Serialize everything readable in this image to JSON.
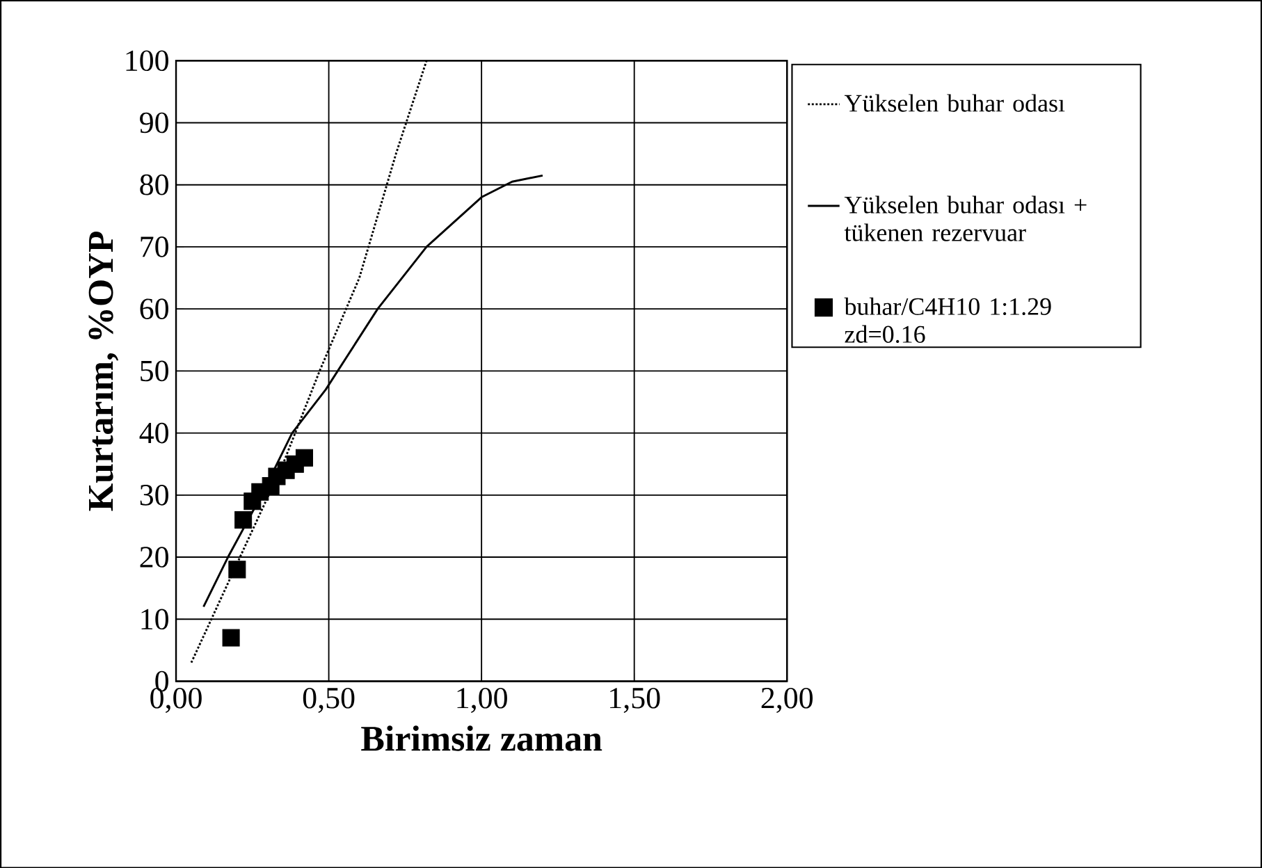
{
  "chart_data": {
    "type": "line",
    "xlabel": "Birimsiz zaman",
    "ylabel": "Kurtarım, %OYP",
    "xlim": [
      0,
      2
    ],
    "ylim": [
      0,
      100
    ],
    "xticks": [
      {
        "value": 0,
        "label": "0,00"
      },
      {
        "value": 0.5,
        "label": "0,50"
      },
      {
        "value": 1,
        "label": "1,00"
      },
      {
        "value": 1.5,
        "label": "1,50"
      },
      {
        "value": 2,
        "label": "2,00"
      }
    ],
    "yticks": [
      0,
      10,
      20,
      30,
      40,
      50,
      60,
      70,
      80,
      90,
      100
    ],
    "grid": true,
    "legend": "right",
    "series": [
      {
        "name": "Yükselen buhar odası",
        "line_style": "dotted",
        "color": "#000000",
        "x": [
          0.05,
          0.2,
          0.35,
          0.47,
          0.6,
          0.72,
          0.82
        ],
        "values": [
          3,
          19,
          35,
          50,
          65,
          85,
          100
        ]
      },
      {
        "name": "Yükselen buhar odası + tükenen rezervuar",
        "line_style": "solid",
        "color": "#000000",
        "x": [
          0.09,
          0.17,
          0.28,
          0.38,
          0.49,
          0.66,
          0.82,
          1.0,
          1.1,
          1.2
        ],
        "values": [
          12,
          20,
          30,
          40,
          47,
          60,
          70,
          78,
          80.5,
          81.5
        ]
      },
      {
        "name": "buhar/C4H10  1:1.29 zd=0.16",
        "type": "scatter",
        "marker": "square",
        "color": "#000000",
        "x": [
          0.18,
          0.2,
          0.22,
          0.25,
          0.275,
          0.31,
          0.33,
          0.36,
          0.39,
          0.42
        ],
        "values": [
          7,
          18,
          26,
          29,
          30.5,
          31.5,
          33,
          34,
          35,
          36
        ]
      }
    ]
  }
}
